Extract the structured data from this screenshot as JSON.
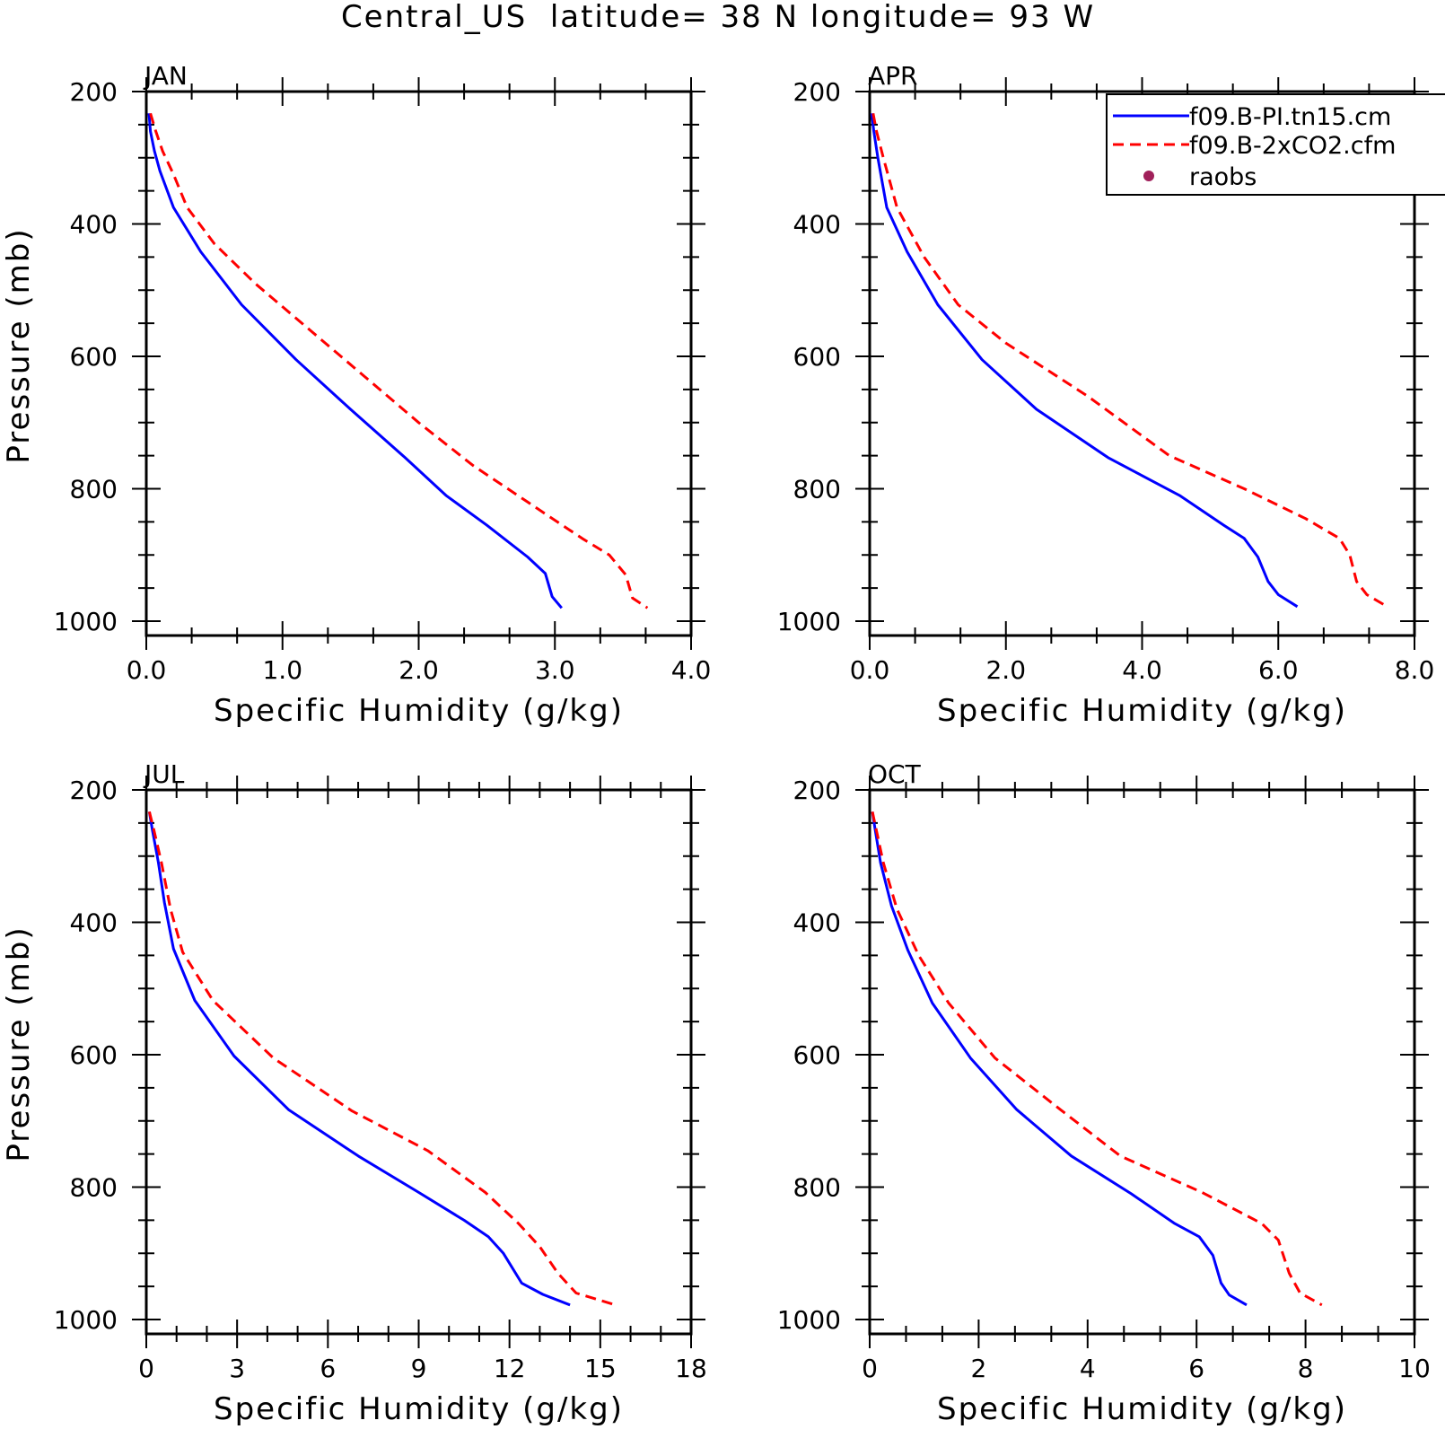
{
  "figure": {
    "title": "Central_US  latitude= 38 N longitude= 93 W"
  },
  "legend": {
    "entries": [
      {
        "label": "f09.B-PI.tn15.cm",
        "color": "#0000ff",
        "style": "solid"
      },
      {
        "label": "f09.B-2xCO2.cfm",
        "color": "#ff0000",
        "style": "dashed"
      },
      {
        "label": "raobs",
        "color": "#a0205a",
        "style": "marker"
      }
    ]
  },
  "chart_data": [
    {
      "type": "line",
      "title": "JAN",
      "xlabel": "Specific Humidity (g/kg)",
      "ylabel": "Pressure (mb)",
      "xlim": [
        0,
        4
      ],
      "ylim": [
        1000,
        200
      ],
      "y_inverted": true,
      "xticks": [
        0,
        1,
        2,
        3,
        4
      ],
      "xtick_labels": [
        "0.0",
        "1.0",
        "2.0",
        "3.0",
        "4.0"
      ],
      "yticks": [
        200,
        400,
        600,
        800,
        1000
      ],
      "ytick_labels": [
        "200",
        "400",
        "600",
        "800",
        "1000"
      ],
      "series": [
        {
          "name": "f09.B-PI.tn15.cm",
          "color": "#0000ff",
          "style": "solid",
          "x": [
            0.02,
            0.03,
            0.06,
            0.1,
            0.2,
            0.4,
            0.7,
            1.1,
            1.5,
            1.9,
            2.2,
            2.5,
            2.8,
            2.93,
            2.98,
            3.05
          ],
          "y": [
            233,
            260,
            290,
            320,
            375,
            442,
            522,
            605,
            680,
            753,
            810,
            855,
            903,
            928,
            963,
            980
          ]
        },
        {
          "name": "f09.B-2xCO2.cfm",
          "color": "#ff0000",
          "style": "dashed",
          "x": [
            0.03,
            0.07,
            0.12,
            0.2,
            0.3,
            0.5,
            0.8,
            1.2,
            1.6,
            2.0,
            2.4,
            2.8,
            3.2,
            3.4,
            3.52,
            3.57,
            3.68
          ],
          "y": [
            233,
            260,
            290,
            325,
            375,
            430,
            490,
            560,
            630,
            700,
            765,
            820,
            875,
            900,
            930,
            965,
            980
          ]
        }
      ]
    },
    {
      "type": "line",
      "title": "APR",
      "xlabel": "Specific Humidity (g/kg)",
      "ylabel": "Pressure (mb)",
      "xlim": [
        0,
        8
      ],
      "ylim": [
        1000,
        200
      ],
      "y_inverted": true,
      "xticks": [
        0,
        2,
        4,
        6,
        8
      ],
      "xtick_labels": [
        "0.0",
        "2.0",
        "4.0",
        "6.0",
        "8.0"
      ],
      "yticks": [
        200,
        400,
        600,
        800,
        1000
      ],
      "ytick_labels": [
        "200",
        "400",
        "600",
        "800",
        "1000"
      ],
      "series": [
        {
          "name": "f09.B-PI.tn15.cm",
          "color": "#0000ff",
          "style": "solid",
          "x": [
            0.03,
            0.06,
            0.12,
            0.25,
            0.55,
            1.0,
            1.65,
            2.45,
            3.5,
            4.55,
            5.2,
            5.5,
            5.7,
            5.85,
            6.0,
            6.28
          ],
          "y": [
            233,
            260,
            300,
            375,
            442,
            522,
            605,
            680,
            753,
            810,
            855,
            875,
            903,
            940,
            960,
            978
          ]
        },
        {
          "name": "f09.B-2xCO2.cfm",
          "color": "#ff0000",
          "style": "dashed",
          "x": [
            0.05,
            0.1,
            0.2,
            0.4,
            0.8,
            1.3,
            2.0,
            3.2,
            4.4,
            5.5,
            6.4,
            6.9,
            7.05,
            7.15,
            7.3,
            7.6
          ],
          "y": [
            233,
            260,
            300,
            375,
            450,
            522,
            580,
            660,
            750,
            800,
            845,
            875,
            900,
            940,
            960,
            978
          ]
        }
      ]
    },
    {
      "type": "line",
      "title": "JUL",
      "xlabel": "Specific Humidity (g/kg)",
      "ylabel": "Pressure (mb)",
      "xlim": [
        0,
        18
      ],
      "ylim": [
        1000,
        200
      ],
      "y_inverted": true,
      "xticks": [
        0,
        3,
        6,
        9,
        12,
        15,
        18
      ],
      "xtick_labels": [
        "0",
        "3",
        "6",
        "9",
        "12",
        "15",
        "18"
      ],
      "yticks": [
        200,
        400,
        600,
        800,
        1000
      ],
      "ytick_labels": [
        "200",
        "400",
        "600",
        "800",
        "1000"
      ],
      "series": [
        {
          "name": "f09.B-PI.tn15.cm",
          "color": "#0000ff",
          "style": "solid",
          "x": [
            0.1,
            0.2,
            0.4,
            0.6,
            0.9,
            1.6,
            2.9,
            4.7,
            7.0,
            9.0,
            10.5,
            11.3,
            11.8,
            12.4,
            13.1,
            14.0
          ],
          "y": [
            233,
            260,
            310,
            370,
            440,
            518,
            602,
            683,
            753,
            808,
            850,
            875,
            900,
            945,
            962,
            978
          ]
        },
        {
          "name": "f09.B-2xCO2.cfm",
          "color": "#ff0000",
          "style": "dashed",
          "x": [
            0.1,
            0.25,
            0.5,
            0.8,
            1.2,
            2.2,
            4.2,
            6.8,
            9.3,
            11.2,
            12.3,
            13.0,
            13.6,
            14.2,
            15.5
          ],
          "y": [
            233,
            260,
            310,
            380,
            445,
            518,
            605,
            685,
            745,
            808,
            855,
            890,
            930,
            960,
            978
          ]
        }
      ]
    },
    {
      "type": "line",
      "title": "OCT",
      "xlabel": "Specific Humidity (g/kg)",
      "ylabel": "Pressure (mb)",
      "xlim": [
        0,
        10
      ],
      "ylim": [
        1000,
        200
      ],
      "y_inverted": true,
      "xticks": [
        0,
        2,
        4,
        6,
        8,
        10
      ],
      "xtick_labels": [
        "0",
        "2",
        "4",
        "6",
        "8",
        "10"
      ],
      "yticks": [
        200,
        400,
        600,
        800,
        1000
      ],
      "ytick_labels": [
        "200",
        "400",
        "600",
        "800",
        "1000"
      ],
      "series": [
        {
          "name": "f09.B-PI.tn15.cm",
          "color": "#0000ff",
          "style": "solid",
          "x": [
            0.05,
            0.1,
            0.2,
            0.4,
            0.7,
            1.15,
            1.85,
            2.7,
            3.7,
            4.8,
            5.6,
            6.05,
            6.3,
            6.45,
            6.6,
            6.92
          ],
          "y": [
            233,
            260,
            310,
            375,
            442,
            522,
            605,
            683,
            753,
            810,
            855,
            875,
            903,
            945,
            963,
            978
          ]
        },
        {
          "name": "f09.B-2xCO2.cfm",
          "color": "#ff0000",
          "style": "dashed",
          "x": [
            0.05,
            0.12,
            0.25,
            0.5,
            0.9,
            1.45,
            2.3,
            3.5,
            4.6,
            6.1,
            7.2,
            7.5,
            7.7,
            7.9,
            8.3
          ],
          "y": [
            233,
            260,
            310,
            380,
            450,
            522,
            605,
            683,
            753,
            808,
            855,
            880,
            930,
            960,
            978
          ]
        }
      ]
    }
  ]
}
